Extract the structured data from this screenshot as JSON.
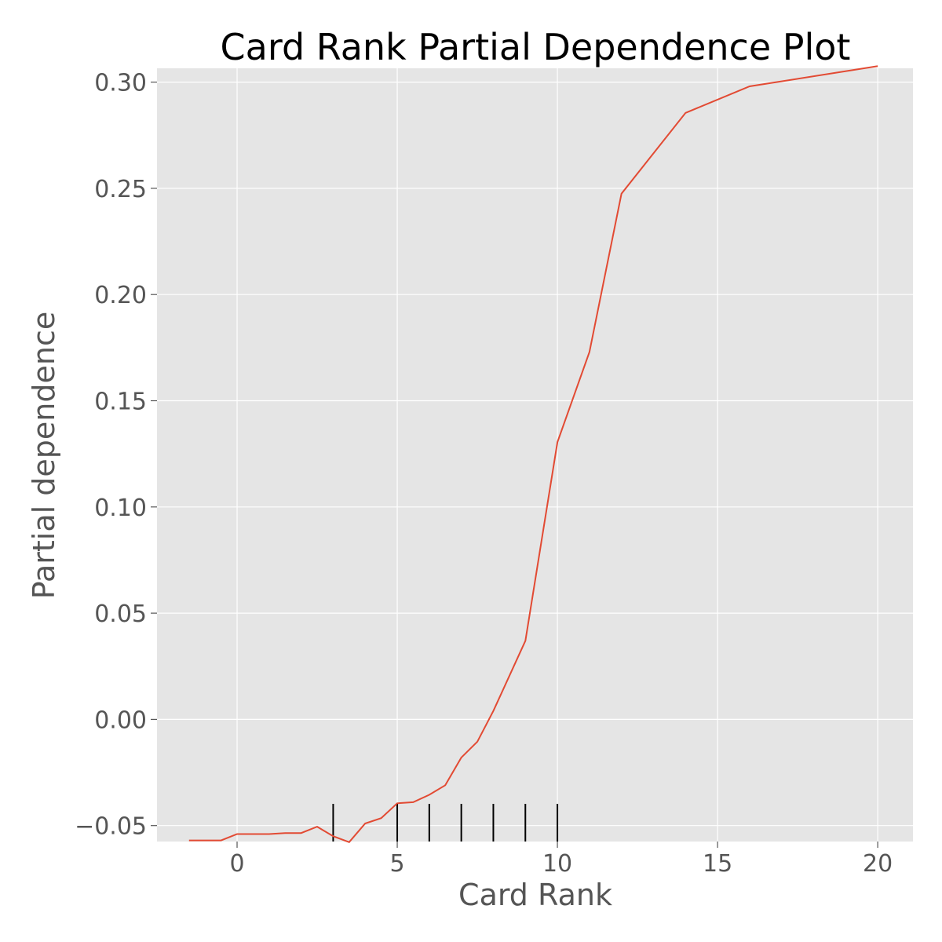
{
  "chart_data": {
    "type": "line",
    "title": "Card Rank Partial Dependence Plot",
    "xlabel": "Card Rank",
    "ylabel": "Partial dependence",
    "xlim": [
      -2.5,
      21.1
    ],
    "ylim": [
      -0.0575,
      0.3065
    ],
    "xticks": [
      0,
      5,
      10,
      15,
      20
    ],
    "xtick_labels": [
      "0",
      "5",
      "10",
      "15",
      "20"
    ],
    "yticks": [
      -0.05,
      0.0,
      0.05,
      0.1,
      0.15,
      0.2,
      0.25,
      0.3
    ],
    "ytick_labels": [
      "−0.05",
      "0.00",
      "0.05",
      "0.10",
      "0.15",
      "0.20",
      "0.25",
      "0.30"
    ],
    "grid": true,
    "style": "ggplot",
    "colors": {
      "line": "#e24a33",
      "background": "#e5e5e5",
      "grid": "#ffffff",
      "rug": "#000000"
    },
    "series": [
      {
        "x": [
          -1.5,
          -0.5,
          0,
          1,
          1.5,
          2,
          2.5,
          3,
          3.5,
          4,
          4.5,
          5,
          5.5,
          6,
          6.5,
          7,
          7.5,
          8,
          9,
          10,
          11,
          12,
          14,
          16,
          20
        ],
        "y": [
          -0.057,
          -0.057,
          -0.054,
          -0.054,
          -0.0535,
          -0.0535,
          -0.0505,
          -0.055,
          -0.0578,
          -0.049,
          -0.0465,
          -0.0395,
          -0.039,
          -0.0355,
          -0.031,
          -0.018,
          -0.0105,
          0.004,
          0.037,
          0.1305,
          0.173,
          0.2475,
          0.2855,
          0.298,
          0.3075
        ]
      }
    ],
    "rug_x": [
      3,
      5,
      6,
      7,
      8,
      9,
      10
    ]
  }
}
